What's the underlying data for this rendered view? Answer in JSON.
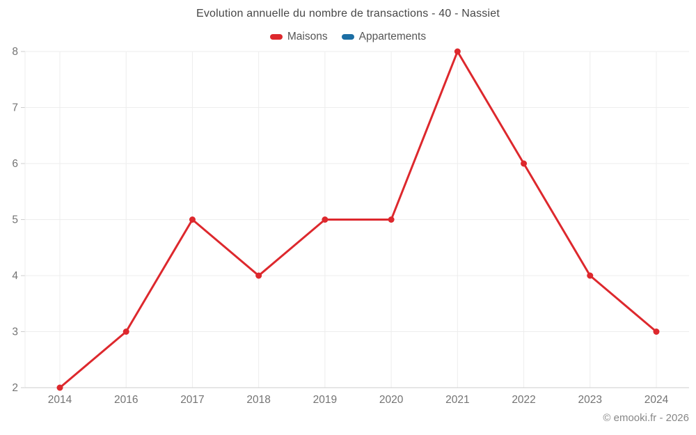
{
  "chart_data": {
    "type": "line",
    "title": "Evolution annuelle du nombre de transactions - 40 - Nassiet",
    "categories": [
      "2014",
      "2016",
      "2017",
      "2018",
      "2019",
      "2020",
      "2021",
      "2022",
      "2023",
      "2024"
    ],
    "series": [
      {
        "name": "Maisons",
        "color": "#dd282d",
        "values": [
          2,
          3,
          5,
          4,
          5,
          5,
          8,
          6,
          4,
          3
        ]
      },
      {
        "name": "Appartements",
        "color": "#1c6ea4",
        "values": []
      }
    ],
    "ylim": [
      2,
      8
    ],
    "yticks": [
      2,
      3,
      4,
      5,
      6,
      7,
      8
    ],
    "grid": true,
    "legend_position": "top",
    "footer": "© emooki.fr - 2026"
  },
  "colors": {
    "grid": "#ededed",
    "axis": "#cccccc",
    "tick_label": "#737373"
  }
}
